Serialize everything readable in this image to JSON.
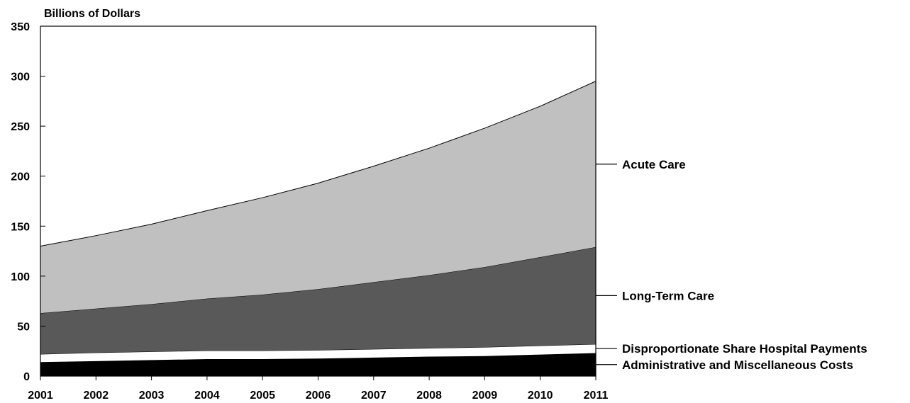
{
  "chart_data": {
    "type": "area",
    "stacked": true,
    "ylabel": "Billions of Dollars",
    "xlabel": "",
    "x": [
      "2001",
      "2002",
      "2003",
      "2004",
      "2005",
      "2006",
      "2007",
      "2008",
      "2009",
      "2010",
      "2011"
    ],
    "ylim": [
      0,
      350
    ],
    "yticks": [
      0,
      50,
      100,
      150,
      200,
      250,
      300,
      350
    ],
    "grid": false,
    "legend": "right, labels with leader lines",
    "series": [
      {
        "name": "Administrative and Miscellaneous Costs",
        "color": "#000000",
        "values": [
          14,
          15,
          16,
          17,
          17,
          17.5,
          18.5,
          19.5,
          20,
          21.5,
          23
        ]
      },
      {
        "name": "Disproportionate Share Hospital Payments",
        "color": "#ffffff",
        "values": [
          8,
          8.5,
          8.5,
          8.5,
          8.5,
          8.5,
          8.5,
          8.5,
          9,
          9,
          9
        ]
      },
      {
        "name": "Long-Term Care",
        "color": "#595959",
        "values": [
          41,
          44,
          47.5,
          52,
          56,
          61,
          67,
          73,
          80,
          88.5,
          97
        ]
      },
      {
        "name": "Acute Care",
        "color": "#c0c0c0",
        "values": [
          67,
          73,
          80,
          88,
          97,
          106,
          116,
          127,
          139,
          151,
          166
        ]
      }
    ]
  }
}
